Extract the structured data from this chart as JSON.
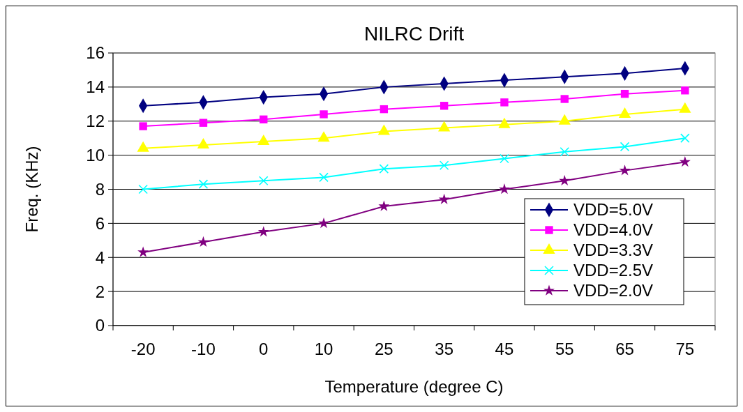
{
  "chart_data": {
    "type": "line",
    "title": "NILRC Drift",
    "xlabel": "Temperature (degree C)",
    "ylabel": "Freq. (KHz)",
    "categories": [
      "-20",
      "-10",
      "0",
      "10",
      "25",
      "35",
      "45",
      "55",
      "65",
      "75"
    ],
    "ylim": [
      0,
      16
    ],
    "yticks": [
      0,
      2,
      4,
      6,
      8,
      10,
      12,
      14,
      16
    ],
    "grid": "y",
    "legend": "bottom right",
    "series": [
      {
        "name": "VDD=5.0V",
        "color": "#000080",
        "marker": "diamond",
        "values": [
          12.9,
          13.1,
          13.4,
          13.6,
          14.0,
          14.2,
          14.4,
          14.6,
          14.8,
          15.1
        ]
      },
      {
        "name": "VDD=4.0V",
        "color": "#ff00ff",
        "marker": "square",
        "values": [
          11.7,
          11.9,
          12.1,
          12.4,
          12.7,
          12.9,
          13.1,
          13.3,
          13.6,
          13.8
        ]
      },
      {
        "name": "VDD=3.3V",
        "color": "#ffff00",
        "marker": "triangle",
        "values": [
          10.4,
          10.6,
          10.8,
          11.0,
          11.4,
          11.6,
          11.8,
          12.0,
          12.4,
          12.7
        ]
      },
      {
        "name": "VDD=2.5V",
        "color": "#00ffff",
        "marker": "cross",
        "values": [
          8.0,
          8.3,
          8.5,
          8.7,
          9.2,
          9.4,
          9.8,
          10.2,
          10.5,
          11.0
        ]
      },
      {
        "name": "VDD=2.0V",
        "color": "#800080",
        "marker": "star",
        "values": [
          4.3,
          4.9,
          5.5,
          6.0,
          7.0,
          7.4,
          8.0,
          8.5,
          9.1,
          9.6
        ]
      }
    ]
  }
}
